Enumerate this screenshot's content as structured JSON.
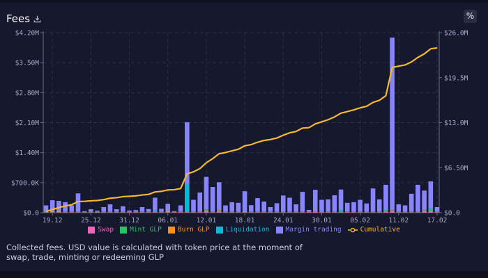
{
  "header": {
    "title": "Fees",
    "download_icon": "download-icon",
    "percent_toggle_label": "%"
  },
  "footer": {
    "note": "Collected fees. USD value is calculated with token price at the moment of swap, trade, minting or redeeming GLP"
  },
  "chart_data": {
    "type": "bar",
    "stacked": true,
    "title": "",
    "xlabel": "",
    "ylabel": "",
    "categories": [
      "18.12",
      "19.12",
      "20.12",
      "21.12",
      "22.12",
      "23.12",
      "24.12",
      "25.12",
      "26.12",
      "27.12",
      "28.12",
      "29.12",
      "30.12",
      "31.12",
      "01.01",
      "02.01",
      "03.01",
      "04.01",
      "05.01",
      "06.01",
      "07.01",
      "08.01",
      "09.01",
      "10.01",
      "11.01",
      "12.01",
      "13.01",
      "14.01",
      "15.01",
      "16.01",
      "17.01",
      "18.01",
      "19.01",
      "20.01",
      "21.01",
      "22.01",
      "23.01",
      "24.01",
      "25.01",
      "26.01",
      "27.01",
      "28.01",
      "29.01",
      "30.01",
      "31.01",
      "01.02",
      "02.02",
      "03.02",
      "04.02",
      "05.02",
      "06.02",
      "07.02",
      "08.02",
      "09.02",
      "10.02",
      "11.02",
      "12.02",
      "13.02",
      "14.02",
      "15.02",
      "16.02",
      "17.02"
    ],
    "x_tick_labels": [
      "19.12",
      "25.12",
      "31.12",
      "06.01",
      "12.01",
      "18.01",
      "24.01",
      "30.01",
      "05.02",
      "11.02",
      "17.02"
    ],
    "y_left": {
      "ylim": [
        0,
        4200000
      ],
      "tick_labels": [
        "$0.0",
        "$700.0K",
        "$1.40M",
        "$2.10M",
        "$2.80M",
        "$3.50M",
        "$4.20M"
      ]
    },
    "y_right": {
      "ylim": [
        0,
        26000000
      ],
      "tick_labels": [
        "$0.0",
        "$6.50M",
        "$13.0M",
        "$19.5M",
        "$26.0M"
      ]
    },
    "grid": true,
    "legend_position": "bottom",
    "series": [
      {
        "name": "Swap",
        "color": "#ee64b8",
        "values": [
          8000,
          8000,
          8000,
          8000,
          8000,
          8000,
          8000,
          8000,
          8000,
          8000,
          8000,
          8000,
          8000,
          8000,
          8000,
          8000,
          8000,
          8000,
          8000,
          8000,
          8000,
          8000,
          8000,
          8000,
          8000,
          40000,
          8000,
          45000,
          8000,
          8000,
          8000,
          8000,
          8000,
          8000,
          8000,
          8000,
          8000,
          8000,
          8000,
          8000,
          8000,
          8000,
          25000,
          8000,
          8000,
          8000,
          8000,
          8000,
          8000,
          8000,
          8000,
          8000,
          8000,
          30000,
          40000,
          8000,
          8000,
          8000,
          8000,
          40000,
          40000,
          8000
        ]
      },
      {
        "name": "Mint GLP",
        "color": "#22c761",
        "values": [
          5000,
          5000,
          5000,
          5000,
          5000,
          5000,
          5000,
          5000,
          5000,
          5000,
          5000,
          5000,
          5000,
          5000,
          5000,
          5000,
          5000,
          5000,
          5000,
          5000,
          5000,
          5000,
          5000,
          5000,
          5000,
          20000,
          5000,
          5000,
          5000,
          5000,
          5000,
          5000,
          5000,
          5000,
          5000,
          5000,
          5000,
          5000,
          5000,
          5000,
          5000,
          5000,
          5000,
          5000,
          5000,
          5000,
          20000,
          5000,
          5000,
          5000,
          5000,
          5000,
          5000,
          5000,
          5000,
          5000,
          5000,
          5000,
          5000,
          5000,
          25000,
          5000
        ]
      },
      {
        "name": "Burn GLP",
        "color": "#f7931a",
        "values": [
          10000,
          30000,
          30000,
          10000,
          10000,
          10000,
          10000,
          10000,
          10000,
          10000,
          10000,
          10000,
          10000,
          10000,
          10000,
          10000,
          10000,
          10000,
          10000,
          30000,
          10000,
          10000,
          10000,
          10000,
          10000,
          10000,
          10000,
          10000,
          10000,
          10000,
          10000,
          20000,
          10000,
          10000,
          10000,
          10000,
          10000,
          10000,
          10000,
          10000,
          10000,
          10000,
          10000,
          10000,
          10000,
          10000,
          10000,
          10000,
          10000,
          10000,
          10000,
          10000,
          10000,
          10000,
          10000,
          10000,
          10000,
          10000,
          10000,
          10000,
          10000,
          10000
        ]
      },
      {
        "name": "Liquidation",
        "color": "#12b6d6",
        "values": [
          5000,
          5000,
          5000,
          5000,
          5000,
          5000,
          5000,
          5000,
          5000,
          5000,
          5000,
          5000,
          5000,
          5000,
          5000,
          5000,
          5000,
          30000,
          5000,
          5000,
          5000,
          5000,
          650000,
          5000,
          5000,
          5000,
          5000,
          5000,
          5000,
          5000,
          5000,
          5000,
          5000,
          20000,
          5000,
          5000,
          5000,
          5000,
          5000,
          5000,
          5000,
          5000,
          5000,
          20000,
          5000,
          5000,
          25000,
          5000,
          5000,
          5000,
          5000,
          5000,
          5000,
          20000,
          5000,
          5000,
          5000,
          5000,
          5000,
          5000,
          20000,
          5000
        ]
      },
      {
        "name": "Margin trading",
        "color": "#8884ff",
        "values": [
          142000,
          242000,
          227000,
          217000,
          142000,
          422000,
          7000,
          52000,
          17000,
          102000,
          167000,
          52000,
          122000,
          22000,
          32000,
          102000,
          57000,
          297000,
          62000,
          157000,
          7000,
          142000,
          1437000,
          272000,
          442000,
          760000,
          572000,
          645000,
          142000,
          217000,
          202000,
          462000,
          147000,
          297000,
          232000,
          102000,
          192000,
          372000,
          322000,
          167000,
          457000,
          37000,
          490000,
          257000,
          282000,
          377000,
          477000,
          202000,
          217000,
          272000,
          187000,
          537000,
          282000,
          585000,
          4025000,
          167000,
          142000,
          412000,
          622000,
          455000,
          635000,
          102000
        ]
      }
    ],
    "line_series": {
      "name": "Cumulative",
      "color": "#f5b82e",
      "axis": "right",
      "of": "sum of all series"
    }
  }
}
